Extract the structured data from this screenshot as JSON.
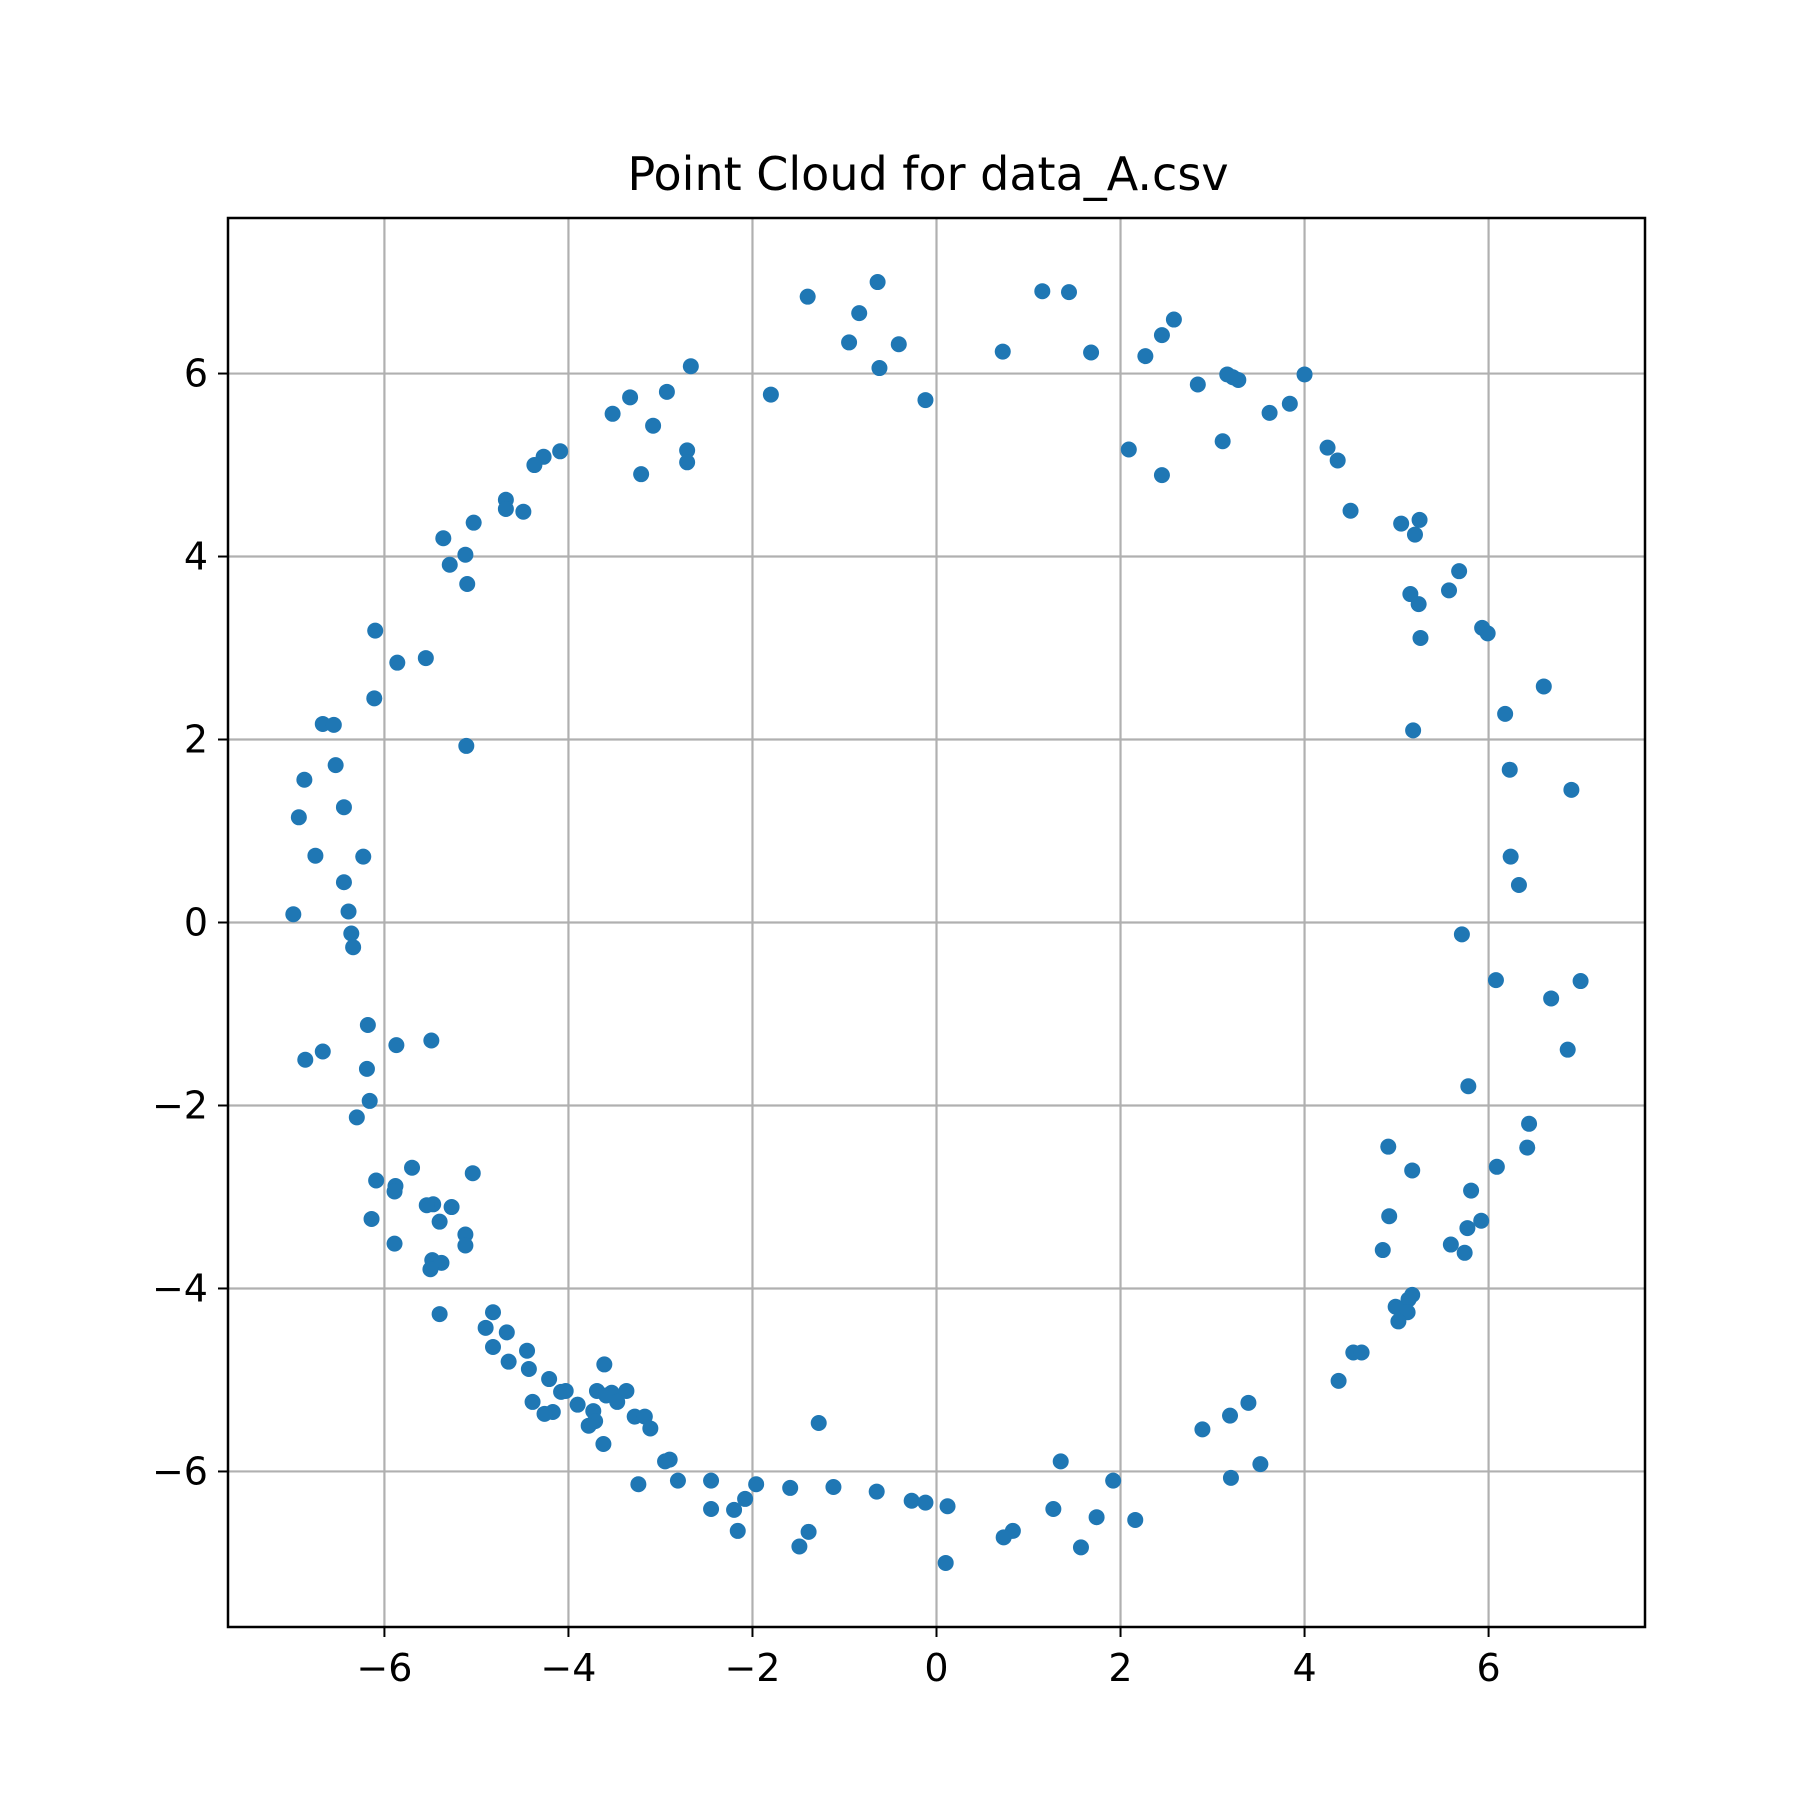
{
  "chart_data": {
    "type": "scatter",
    "title": "Point Cloud for data_A.csv",
    "xlabel": "",
    "ylabel": "",
    "xlim": [
      -7.7,
      7.7
    ],
    "ylim": [
      -7.7,
      7.7
    ],
    "xticks": [
      -6,
      -4,
      -2,
      0,
      2,
      4,
      6
    ],
    "yticks": [
      -6,
      -4,
      -2,
      0,
      2,
      4,
      6
    ],
    "xtick_labels": [
      "−6",
      "−4",
      "−2",
      "0",
      "2",
      "4",
      "6"
    ],
    "ytick_labels": [
      "−6",
      "−4",
      "−2",
      "0",
      "2",
      "4",
      "6"
    ],
    "grid": true,
    "marker_color": "#1f77b4",
    "series": [
      {
        "points": [
          [
            -0.64,
            7.0
          ],
          [
            1.15,
            6.9
          ],
          [
            1.44,
            6.89
          ],
          [
            -1.4,
            6.84
          ],
          [
            -0.84,
            6.66
          ],
          [
            2.58,
            6.59
          ],
          [
            2.45,
            6.42
          ],
          [
            -0.95,
            6.34
          ],
          [
            -0.41,
            6.32
          ],
          [
            0.72,
            6.24
          ],
          [
            1.68,
            6.23
          ],
          [
            2.27,
            6.19
          ],
          [
            -2.67,
            6.08
          ],
          [
            -0.62,
            6.06
          ],
          [
            3.16,
            5.99
          ],
          [
            4.0,
            5.99
          ],
          [
            3.22,
            5.96
          ],
          [
            3.28,
            5.93
          ],
          [
            2.84,
            5.88
          ],
          [
            -2.93,
            5.8
          ],
          [
            -1.8,
            5.77
          ],
          [
            -3.33,
            5.74
          ],
          [
            -0.12,
            5.71
          ],
          [
            3.84,
            5.67
          ],
          [
            3.62,
            5.57
          ],
          [
            -3.52,
            5.56
          ],
          [
            -3.08,
            5.43
          ],
          [
            3.11,
            5.26
          ],
          [
            4.25,
            5.19
          ],
          [
            2.09,
            5.17
          ],
          [
            -2.71,
            5.16
          ],
          [
            -4.09,
            5.15
          ],
          [
            -4.27,
            5.09
          ],
          [
            4.36,
            5.05
          ],
          [
            -2.71,
            5.03
          ],
          [
            -4.37,
            5.0
          ],
          [
            -3.21,
            4.9
          ],
          [
            2.45,
            4.89
          ],
          [
            -4.68,
            4.62
          ],
          [
            -4.68,
            4.52
          ],
          [
            4.5,
            4.5
          ],
          [
            -4.49,
            4.49
          ],
          [
            5.25,
            4.4
          ],
          [
            -5.03,
            4.37
          ],
          [
            5.05,
            4.36
          ],
          [
            5.2,
            4.24
          ],
          [
            -5.36,
            4.2
          ],
          [
            -5.12,
            4.02
          ],
          [
            -5.29,
            3.91
          ],
          [
            5.68,
            3.84
          ],
          [
            -5.1,
            3.7
          ],
          [
            5.57,
            3.63
          ],
          [
            5.15,
            3.59
          ],
          [
            5.24,
            3.48
          ],
          [
            5.93,
            3.22
          ],
          [
            -6.1,
            3.19
          ],
          [
            5.99,
            3.16
          ],
          [
            5.26,
            3.11
          ],
          [
            -5.55,
            2.89
          ],
          [
            -5.86,
            2.84
          ],
          [
            6.6,
            2.58
          ],
          [
            -6.11,
            2.45
          ],
          [
            6.18,
            2.28
          ],
          [
            -6.67,
            2.17
          ],
          [
            -6.55,
            2.16
          ],
          [
            5.18,
            2.1
          ],
          [
            -5.11,
            1.93
          ],
          [
            -6.53,
            1.72
          ],
          [
            6.23,
            1.67
          ],
          [
            -6.87,
            1.56
          ],
          [
            6.9,
            1.45
          ],
          [
            -6.44,
            1.26
          ],
          [
            -6.93,
            1.15
          ],
          [
            -6.23,
            0.72
          ],
          [
            -6.75,
            0.73
          ],
          [
            6.24,
            0.72
          ],
          [
            -6.44,
            0.44
          ],
          [
            6.33,
            0.41
          ],
          [
            -6.39,
            0.12
          ],
          [
            -6.99,
            0.09
          ],
          [
            5.71,
            -0.13
          ],
          [
            -6.36,
            -0.12
          ],
          [
            -6.34,
            -0.27
          ],
          [
            7.0,
            -0.64
          ],
          [
            6.08,
            -0.63
          ],
          [
            6.68,
            -0.83
          ],
          [
            -6.18,
            -1.12
          ],
          [
            -5.49,
            -1.29
          ],
          [
            -5.87,
            -1.34
          ],
          [
            6.86,
            -1.39
          ],
          [
            -6.67,
            -1.41
          ],
          [
            -6.86,
            -1.5
          ],
          [
            -6.19,
            -1.6
          ],
          [
            5.78,
            -1.79
          ],
          [
            -6.16,
            -1.95
          ],
          [
            -6.3,
            -2.13
          ],
          [
            6.44,
            -2.2
          ],
          [
            4.91,
            -2.45
          ],
          [
            6.42,
            -2.46
          ],
          [
            -5.7,
            -2.68
          ],
          [
            6.09,
            -2.67
          ],
          [
            5.17,
            -2.71
          ],
          [
            -5.04,
            -2.74
          ],
          [
            -6.09,
            -2.82
          ],
          [
            -5.88,
            -2.88
          ],
          [
            -5.89,
            -2.94
          ],
          [
            5.81,
            -2.93
          ],
          [
            -5.47,
            -3.08
          ],
          [
            -5.54,
            -3.09
          ],
          [
            -5.27,
            -3.11
          ],
          [
            4.92,
            -3.21
          ],
          [
            -6.14,
            -3.24
          ],
          [
            5.92,
            -3.26
          ],
          [
            -5.4,
            -3.27
          ],
          [
            5.77,
            -3.34
          ],
          [
            -5.12,
            -3.41
          ],
          [
            -5.89,
            -3.51
          ],
          [
            5.59,
            -3.52
          ],
          [
            -5.12,
            -3.53
          ],
          [
            4.85,
            -3.58
          ],
          [
            5.74,
            -3.61
          ],
          [
            -5.48,
            -3.69
          ],
          [
            -5.38,
            -3.72
          ],
          [
            -5.5,
            -3.79
          ],
          [
            5.17,
            -4.07
          ],
          [
            5.13,
            -4.12
          ],
          [
            4.99,
            -4.2
          ],
          [
            5.12,
            -4.26
          ],
          [
            -4.82,
            -4.26
          ],
          [
            -5.4,
            -4.28
          ],
          [
            5.02,
            -4.36
          ],
          [
            -4.9,
            -4.43
          ],
          [
            -4.67,
            -4.48
          ],
          [
            -4.82,
            -4.64
          ],
          [
            -4.45,
            -4.68
          ],
          [
            4.53,
            -4.7
          ],
          [
            4.62,
            -4.7
          ],
          [
            -4.65,
            -4.8
          ],
          [
            -3.61,
            -4.83
          ],
          [
            -4.43,
            -4.88
          ],
          [
            -4.21,
            -4.99
          ],
          [
            4.37,
            -5.01
          ],
          [
            -4.03,
            -5.12
          ],
          [
            -4.08,
            -5.13
          ],
          [
            -3.69,
            -5.12
          ],
          [
            -3.53,
            -5.14
          ],
          [
            -3.37,
            -5.12
          ],
          [
            -3.59,
            -5.17
          ],
          [
            -3.47,
            -5.24
          ],
          [
            -4.39,
            -5.24
          ],
          [
            -3.9,
            -5.27
          ],
          [
            3.39,
            -5.25
          ],
          [
            -3.73,
            -5.34
          ],
          [
            -4.17,
            -5.35
          ],
          [
            -4.26,
            -5.37
          ],
          [
            -3.28,
            -5.4
          ],
          [
            -3.17,
            -5.4
          ],
          [
            3.19,
            -5.39
          ],
          [
            -3.71,
            -5.45
          ],
          [
            -1.28,
            -5.47
          ],
          [
            -3.78,
            -5.5
          ],
          [
            -3.11,
            -5.53
          ],
          [
            2.89,
            -5.54
          ],
          [
            -3.62,
            -5.7
          ],
          [
            -2.9,
            -5.87
          ],
          [
            -2.95,
            -5.89
          ],
          [
            1.35,
            -5.89
          ],
          [
            3.52,
            -5.92
          ],
          [
            3.2,
            -6.07
          ],
          [
            -2.45,
            -6.1
          ],
          [
            -2.81,
            -6.1
          ],
          [
            1.92,
            -6.1
          ],
          [
            -1.96,
            -6.14
          ],
          [
            -3.24,
            -6.14
          ],
          [
            -1.59,
            -6.18
          ],
          [
            -1.12,
            -6.17
          ],
          [
            -0.65,
            -6.22
          ],
          [
            -2.08,
            -6.3
          ],
          [
            -0.27,
            -6.32
          ],
          [
            -0.12,
            -6.34
          ],
          [
            0.12,
            -6.38
          ],
          [
            -2.45,
            -6.41
          ],
          [
            1.27,
            -6.41
          ],
          [
            -2.2,
            -6.42
          ],
          [
            1.74,
            -6.5
          ],
          [
            2.16,
            -6.53
          ],
          [
            -2.16,
            -6.65
          ],
          [
            0.83,
            -6.65
          ],
          [
            -1.39,
            -6.66
          ],
          [
            0.73,
            -6.72
          ],
          [
            -1.49,
            -6.82
          ],
          [
            1.57,
            -6.83
          ],
          [
            0.1,
            -7.0
          ]
        ]
      }
    ]
  }
}
